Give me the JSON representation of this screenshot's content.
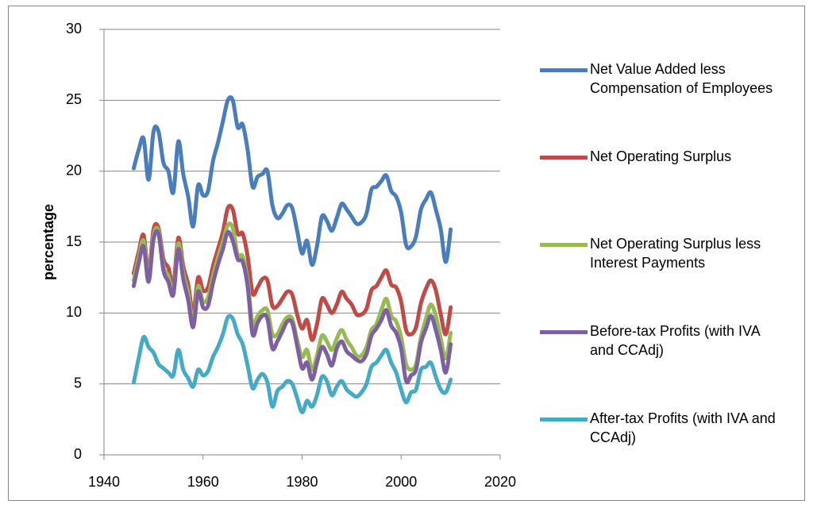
{
  "chart_data": {
    "type": "line",
    "y_label": "percentage",
    "smooth": true,
    "grid": true,
    "legend": "right",
    "x": [
      1946,
      1947,
      1948,
      1949,
      1950,
      1951,
      1952,
      1953,
      1954,
      1955,
      1956,
      1957,
      1958,
      1959,
      1960,
      1961,
      1962,
      1963,
      1964,
      1965,
      1966,
      1967,
      1968,
      1969,
      1970,
      1971,
      1972,
      1973,
      1974,
      1975,
      1976,
      1977,
      1978,
      1979,
      1980,
      1981,
      1982,
      1983,
      1984,
      1985,
      1986,
      1987,
      1988,
      1989,
      1990,
      1991,
      1992,
      1993,
      1994,
      1995,
      1996,
      1997,
      1998,
      1999,
      2000,
      2001,
      2002,
      2003,
      2004,
      2005,
      2006,
      2007,
      2008,
      2009,
      2010
    ],
    "xlim": [
      1940,
      2020
    ],
    "xticks": [
      1940,
      1960,
      1980,
      2000,
      2020
    ],
    "ylim": [
      0,
      30
    ],
    "yticks": [
      0,
      5,
      10,
      15,
      20,
      25,
      30
    ],
    "series": [
      {
        "name": "Net Value Added less Compensation of Employees",
        "color": "#4a7ebb",
        "values": [
          20.2,
          21.5,
          22.3,
          19.4,
          22.8,
          22.8,
          20.6,
          20.0,
          18.5,
          22.1,
          19.8,
          18.2,
          16.1,
          19.0,
          18.3,
          18.6,
          20.7,
          22.0,
          23.5,
          25.0,
          25.0,
          23.1,
          23.3,
          21.5,
          18.9,
          19.6,
          19.8,
          20.0,
          17.6,
          16.7,
          17.0,
          17.6,
          17.4,
          15.8,
          14.2,
          15.1,
          13.4,
          14.7,
          16.8,
          16.5,
          15.8,
          16.7,
          17.7,
          17.3,
          16.8,
          16.3,
          16.4,
          17.0,
          18.7,
          18.9,
          19.3,
          19.7,
          18.6,
          18.2,
          17.1,
          14.8,
          14.7,
          15.4,
          17.3,
          18.0,
          18.5,
          17.3,
          15.9,
          13.6,
          15.9
        ]
      },
      {
        "name": "Net Operating Surplus",
        "color": "#be4b48",
        "values": [
          12.8,
          14.3,
          15.5,
          12.8,
          15.9,
          16.0,
          13.8,
          13.2,
          12.0,
          15.3,
          13.3,
          12.0,
          10.0,
          12.5,
          11.6,
          11.8,
          13.3,
          14.5,
          15.7,
          17.4,
          17.3,
          15.6,
          15.6,
          14.0,
          11.4,
          11.8,
          12.4,
          12.3,
          10.5,
          10.5,
          11.0,
          11.5,
          11.3,
          9.9,
          8.9,
          9.5,
          8.1,
          9.2,
          11.0,
          10.6,
          10.0,
          10.6,
          11.5,
          11.0,
          10.6,
          9.9,
          9.9,
          10.3,
          11.6,
          11.9,
          12.5,
          13.0,
          12.0,
          11.8,
          10.8,
          8.8,
          8.5,
          9.0,
          10.7,
          11.7,
          12.3,
          11.6,
          9.9,
          8.5,
          10.4
        ]
      },
      {
        "name": "Net Operating Surplus less Interest Payments",
        "color": "#98b954",
        "values": [
          12.3,
          13.9,
          15.1,
          12.5,
          15.5,
          15.8,
          13.3,
          12.6,
          11.5,
          14.9,
          12.8,
          11.4,
          9.4,
          11.9,
          10.8,
          11.1,
          12.6,
          13.9,
          15.0,
          16.2,
          16.0,
          14.1,
          14.0,
          12.3,
          9.2,
          9.8,
          10.2,
          10.2,
          8.5,
          8.5,
          9.2,
          9.7,
          9.6,
          8.1,
          6.9,
          7.4,
          6.0,
          7.0,
          8.4,
          8.0,
          7.4,
          8.2,
          8.8,
          8.1,
          7.6,
          7.0,
          7.0,
          7.6,
          8.8,
          9.2,
          10.2,
          11.0,
          9.8,
          9.4,
          8.3,
          6.4,
          6.0,
          6.4,
          8.3,
          9.6,
          10.6,
          9.8,
          8.2,
          6.8,
          8.6
        ]
      },
      {
        "name": "Before-tax Profits (with IVA and CCAdj)",
        "color": "#7d60a0",
        "values": [
          11.9,
          13.5,
          14.7,
          12.2,
          15.2,
          15.6,
          13.0,
          12.2,
          11.3,
          14.5,
          12.4,
          10.9,
          9.0,
          11.5,
          10.4,
          10.5,
          12.1,
          13.4,
          14.5,
          15.7,
          15.1,
          13.8,
          13.6,
          11.9,
          8.5,
          9.3,
          9.8,
          9.6,
          7.5,
          8.0,
          8.7,
          9.4,
          9.3,
          7.7,
          6.1,
          6.5,
          5.3,
          6.5,
          7.6,
          7.1,
          6.3,
          7.5,
          8.0,
          7.3,
          7.0,
          6.7,
          6.6,
          7.1,
          8.4,
          8.9,
          9.5,
          10.2,
          9.1,
          8.6,
          7.5,
          5.2,
          5.6,
          6.0,
          7.9,
          8.9,
          9.8,
          8.8,
          7.4,
          5.8,
          7.8
        ]
      },
      {
        "name": "After-tax Profits (with IVA and CCAdj)",
        "color": "#46aac5",
        "values": [
          5.1,
          6.8,
          8.3,
          7.6,
          7.2,
          6.4,
          6.1,
          5.8,
          5.6,
          7.4,
          6.0,
          5.4,
          4.8,
          6.0,
          5.6,
          5.9,
          6.9,
          7.6,
          8.5,
          9.7,
          9.6,
          8.5,
          7.8,
          6.3,
          4.7,
          5.3,
          5.7,
          5.1,
          3.4,
          4.5,
          4.8,
          5.2,
          5.0,
          4.0,
          3.0,
          3.8,
          3.4,
          4.2,
          5.5,
          5.2,
          4.2,
          4.8,
          5.2,
          4.6,
          4.3,
          4.1,
          4.4,
          5.0,
          6.2,
          6.5,
          7.0,
          7.4,
          6.5,
          5.8,
          4.6,
          3.7,
          4.4,
          4.6,
          6.0,
          6.2,
          6.5,
          5.5,
          4.6,
          4.4,
          5.3
        ]
      }
    ]
  }
}
